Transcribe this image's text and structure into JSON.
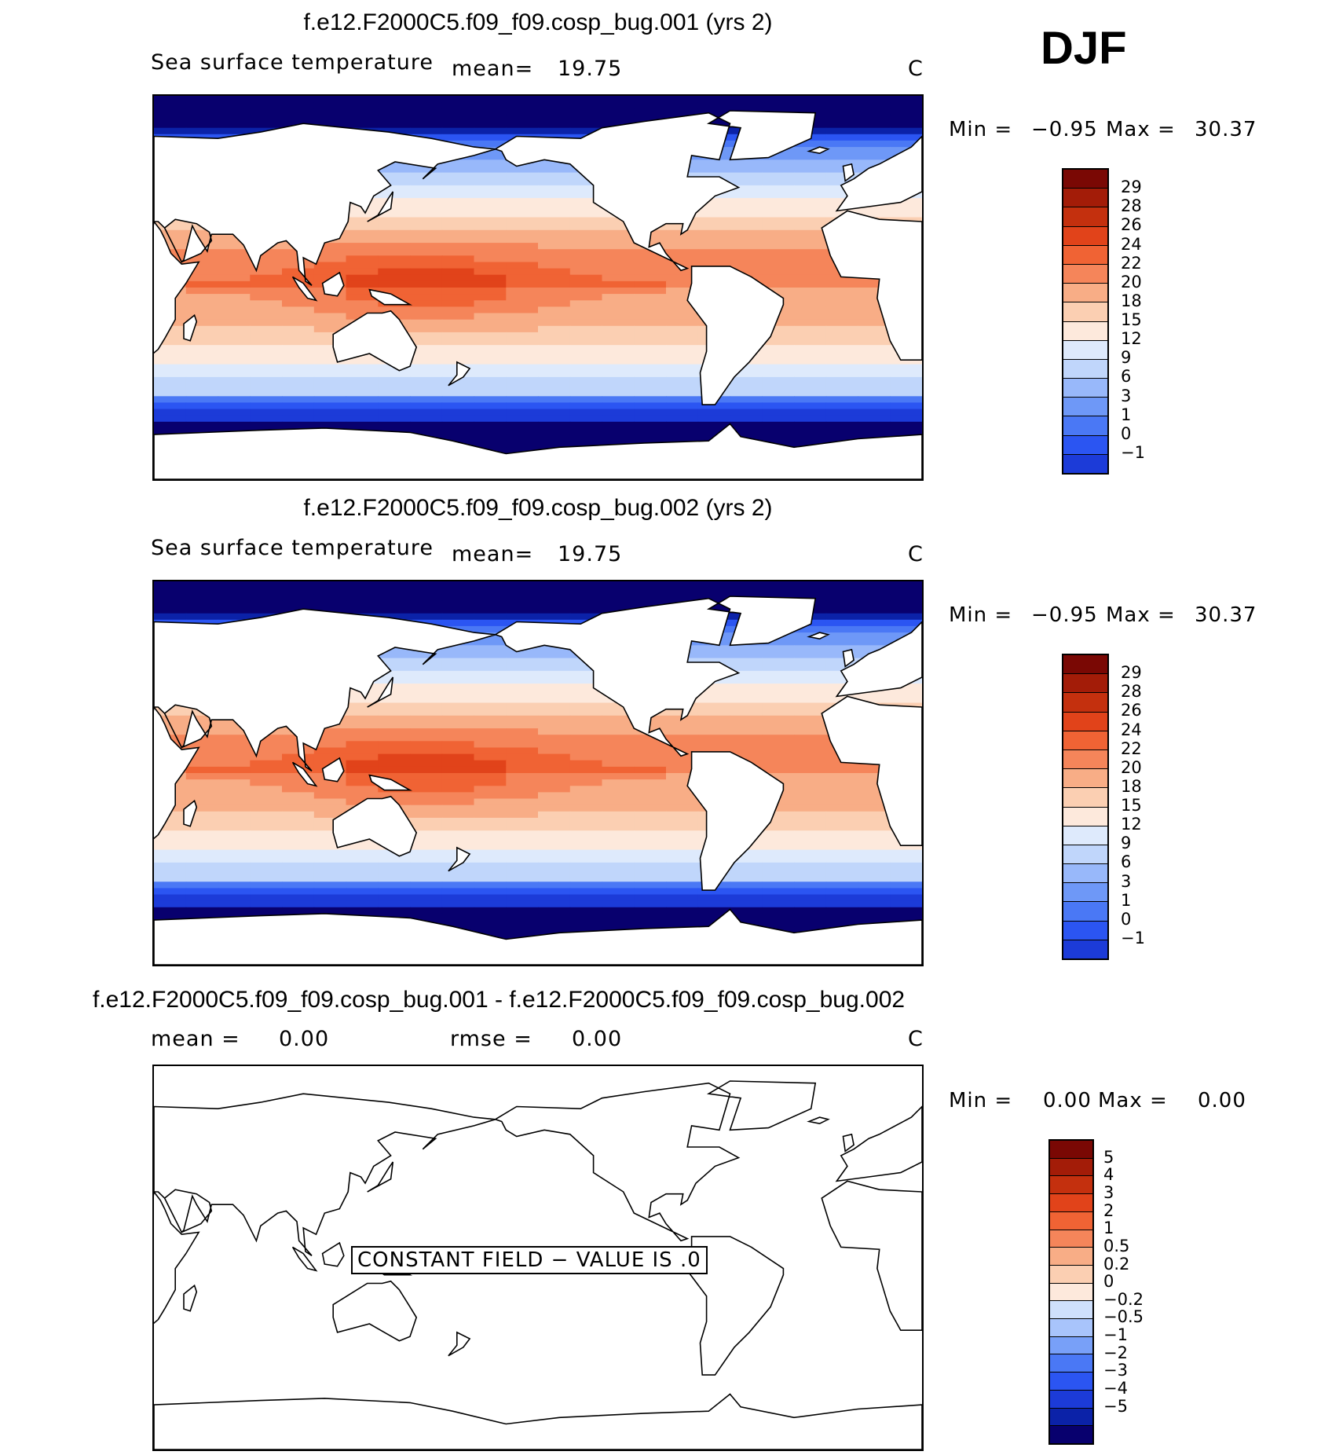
{
  "season": "DJF",
  "unit": "C",
  "sst_colors": [
    "#08006e",
    "#0b22a8",
    "#1c3bd8",
    "#2b55f2",
    "#4a78f5",
    "#6e98f7",
    "#98b8fa",
    "#c0d6fb",
    "#deeafc",
    "#fde9dc",
    "#fbcfb2",
    "#f8ad86",
    "#f5855a",
    "#f06334",
    "#e1431a",
    "#c4300e",
    "#a31c08",
    "#7a0804"
  ],
  "diff_colors": [
    "#08006e",
    "#0b22a8",
    "#1c3bd8",
    "#2b55f2",
    "#4a78f5",
    "#78a0f8",
    "#a8c4fb",
    "#cfe0fc",
    "#fde9dc",
    "#fbcfb2",
    "#f8ad86",
    "#f5855a",
    "#f06334",
    "#e1431a",
    "#c4300e",
    "#a31c08",
    "#7a0804"
  ],
  "land_color": "#ffffff",
  "panels": [
    {
      "title": "f.e12.F2000C5.f09_f09.cosp_bug.001 (yrs 2)",
      "variable": "Sea surface temperature",
      "stat_label": "mean=",
      "stat_value": "19.75",
      "unit": "C",
      "min_label": "Min =",
      "min_value": "−0.95",
      "max_label": "Max =",
      "max_value": "30.37",
      "colorbar_labels": [
        "29",
        "28",
        "26",
        "24",
        "22",
        "20",
        "18",
        "15",
        "12",
        "9",
        "6",
        "3",
        "1",
        "0",
        "−1"
      ]
    },
    {
      "title": "f.e12.F2000C5.f09_f09.cosp_bug.002 (yrs 2)",
      "variable": "Sea surface temperature",
      "stat_label": "mean=",
      "stat_value": "19.75",
      "unit": "C",
      "min_label": "Min =",
      "min_value": "−0.95",
      "max_label": "Max =",
      "max_value": "30.37",
      "colorbar_labels": [
        "29",
        "28",
        "26",
        "24",
        "22",
        "20",
        "18",
        "15",
        "12",
        "9",
        "6",
        "3",
        "1",
        "0",
        "−1"
      ]
    },
    {
      "title": "f.e12.F2000C5.f09_f09.cosp_bug.001 - f.e12.F2000C5.f09_f09.cosp_bug.002",
      "mean_label": "mean =",
      "mean_value": "0.00",
      "rmse_label": "rmse =",
      "rmse_value": "0.00",
      "unit": "C",
      "min_label": "Min =",
      "min_value": "0.00",
      "max_label": "Max =",
      "max_value": "0.00",
      "constant_field_text": "CONSTANT FIELD − VALUE IS .0",
      "colorbar_labels": [
        "5",
        "4",
        "3",
        "2",
        "1",
        "0.5",
        "0.2",
        "0",
        "−0.2",
        "−0.5",
        "−1",
        "−2",
        "−3",
        "−4",
        "−5"
      ]
    }
  ]
}
